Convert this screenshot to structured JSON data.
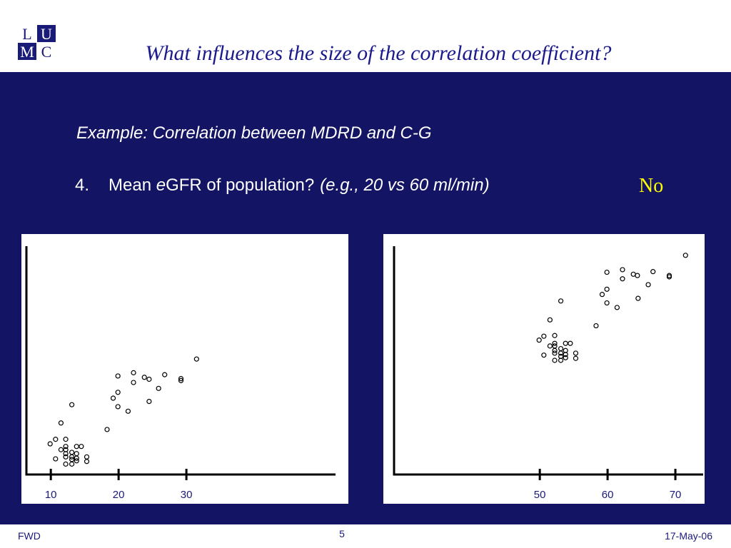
{
  "header": {
    "logo": [
      "L",
      "U",
      "M",
      "C"
    ],
    "title": "What influences the size of the correlation coefficient?"
  },
  "content": {
    "subtitle": "Example: Correlation between MDRD and C-G",
    "item": {
      "number": "4.",
      "text_parts": [
        "Mean ",
        "e",
        "GFR of population?"
      ],
      "example": "(e.g., 20 vs 60 ml/min)",
      "answer": "No"
    }
  },
  "chart_data": [
    {
      "type": "scatter",
      "color": "#000000",
      "xlim": [
        6.4,
        52
      ],
      "xticks": [
        10,
        20,
        30
      ],
      "ylim": [
        5,
        40
      ],
      "x": [
        31.5,
        29.2,
        29.2,
        26.8,
        25.9,
        24.5,
        23.8,
        22.2,
        22.2,
        19.9,
        19.9,
        19.2,
        19.9,
        21.4,
        24.5,
        18.3,
        13.1,
        11.5,
        10.7,
        9.9,
        12.2,
        12.2,
        12.2,
        11.5,
        12.2,
        13.1,
        13.8,
        14.5,
        13.8,
        13.1,
        12.2,
        13.8,
        15.3,
        10.7,
        12.2,
        13.1,
        13.8,
        15.3,
        13.1
      ],
      "y": [
        22.7,
        19.7,
        19.4,
        20.3,
        18.2,
        19.6,
        19.9,
        20.6,
        19.1,
        20.1,
        17.6,
        16.7,
        15.4,
        14.7,
        16.2,
        11.9,
        15.7,
        12.9,
        10.4,
        9.7,
        10.4,
        9.3,
        8.8,
        8.8,
        8.2,
        8.4,
        9.3,
        9.3,
        8.2,
        7.7,
        7.7,
        7.5,
        7.7,
        7.4,
        6.6,
        6.6,
        7.1,
        7.0,
        7.3
      ]
    },
    {
      "type": "scatter",
      "color": "#000000",
      "xlim": [
        28.5,
        74.1
      ],
      "xticks": [
        50,
        60,
        70
      ],
      "ylim": [
        40,
        75
      ],
      "x": [
        71.5,
        69.1,
        69.1,
        66.7,
        64.4,
        63.8,
        62.2,
        62.2,
        59.9,
        59.9,
        59.2,
        59.9,
        61.4,
        66.0,
        64.5,
        58.3,
        53.1,
        51.5,
        50.6,
        49.9,
        52.2,
        52.2,
        52.2,
        51.5,
        52.2,
        53.1,
        53.8,
        54.5,
        53.8,
        53.1,
        52.2,
        53.8,
        55.3,
        50.6,
        52.2,
        53.1,
        53.8,
        55.3,
        53.1
      ],
      "y": [
        73.6,
        70.5,
        70.3,
        71.1,
        70.5,
        70.7,
        71.4,
        70.0,
        71.0,
        68.4,
        67.6,
        66.3,
        65.6,
        69.1,
        67.0,
        62.8,
        66.6,
        63.7,
        61.2,
        60.6,
        61.3,
        60.1,
        59.7,
        59.7,
        59.0,
        59.3,
        60.1,
        60.1,
        59.0,
        58.6,
        58.6,
        58.4,
        58.6,
        58.3,
        57.5,
        57.5,
        57.9,
        57.8,
        58.1
      ]
    }
  ],
  "footer": {
    "left": "FWD",
    "page": "5",
    "date": "17-May-06"
  }
}
